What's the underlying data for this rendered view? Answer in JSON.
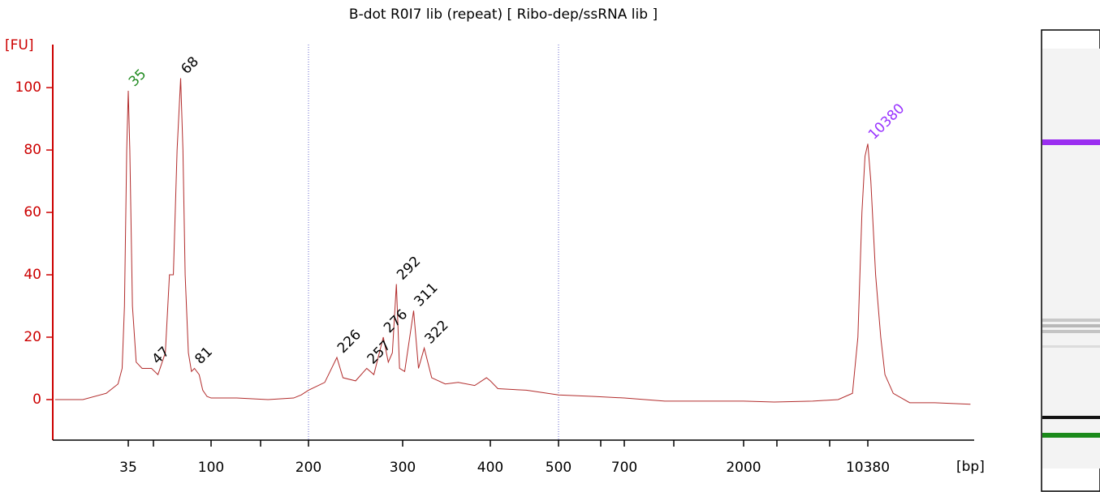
{
  "chart_data": {
    "type": "line",
    "title": "B-dot R0I7 lib (repeat)  [ Ribo-dep/ssRNA lib ]",
    "ylabel": "[FU]",
    "xlabel": "[bp]",
    "xlim": [
      13,
      42000
    ],
    "ylim": [
      -13,
      113.8
    ],
    "xticks": [
      35,
      100,
      200,
      300,
      400,
      500,
      700,
      2000,
      10380
    ],
    "yticks": [
      0,
      20,
      40,
      60,
      80,
      100
    ],
    "regions": [
      200,
      500
    ],
    "series": [
      {
        "name": "B-dot R0I7 lib (repeat)",
        "color": "#b22c2c",
        "x": [
          13.4,
          19.3,
          26.2,
          30.6,
          32.3,
          33.3,
          34.3,
          35,
          35.7,
          36.9,
          38.7,
          41.7,
          47,
          51,
          56,
          59,
          62,
          65,
          68,
          70,
          72,
          75,
          78,
          81,
          86,
          90,
          95,
          100,
          120,
          150,
          180,
          190,
          200,
          214.5,
          226,
          232,
          245,
          257,
          265,
          276,
          282,
          287,
          292,
          296,
          302,
          311,
          316,
          322,
          330,
          345,
          360,
          380,
          395,
          400,
          410,
          450,
          500,
          600,
          700,
          1000,
          2000,
          3000,
          5000,
          7000,
          8470,
          9100,
          9600,
          10000,
          10380,
          10800,
          11500,
          12300,
          13000,
          14500,
          18000,
          25000,
          40000
        ],
        "values": [
          0,
          0,
          2,
          5,
          10,
          30,
          80,
          99,
          80,
          30,
          12,
          10,
          10,
          8,
          15,
          40,
          40,
          80,
          103,
          80,
          40,
          15,
          9,
          10,
          8,
          3,
          1,
          0.5,
          0.5,
          0,
          0.5,
          1.5,
          3,
          5.5,
          13.5,
          7,
          6,
          10,
          8,
          20,
          12,
          15,
          37,
          10,
          9,
          28.5,
          10,
          16.5,
          7,
          5,
          5.5,
          4.5,
          7,
          6,
          3.5,
          3,
          1.5,
          1,
          0.5,
          -0.5,
          -0.5,
          -0.8,
          -0.5,
          0,
          2,
          20,
          60,
          78,
          82,
          70,
          40,
          20,
          8,
          2,
          -1,
          -1,
          -1.5
        ]
      }
    ],
    "peaks": {
      "x": [
        35,
        47,
        68,
        81,
        226,
        257,
        276,
        292,
        311,
        322,
        10380
      ],
      "y": [
        99,
        10,
        103,
        10,
        13.5,
        10,
        20,
        37,
        28.5,
        16.5,
        82
      ],
      "colors": [
        "#228b22",
        "#000000",
        "#000000",
        "#000000",
        "#000000",
        "#000000",
        "#000000",
        "#000000",
        "#000000",
        "#000000",
        "#9933ff"
      ]
    }
  }
}
